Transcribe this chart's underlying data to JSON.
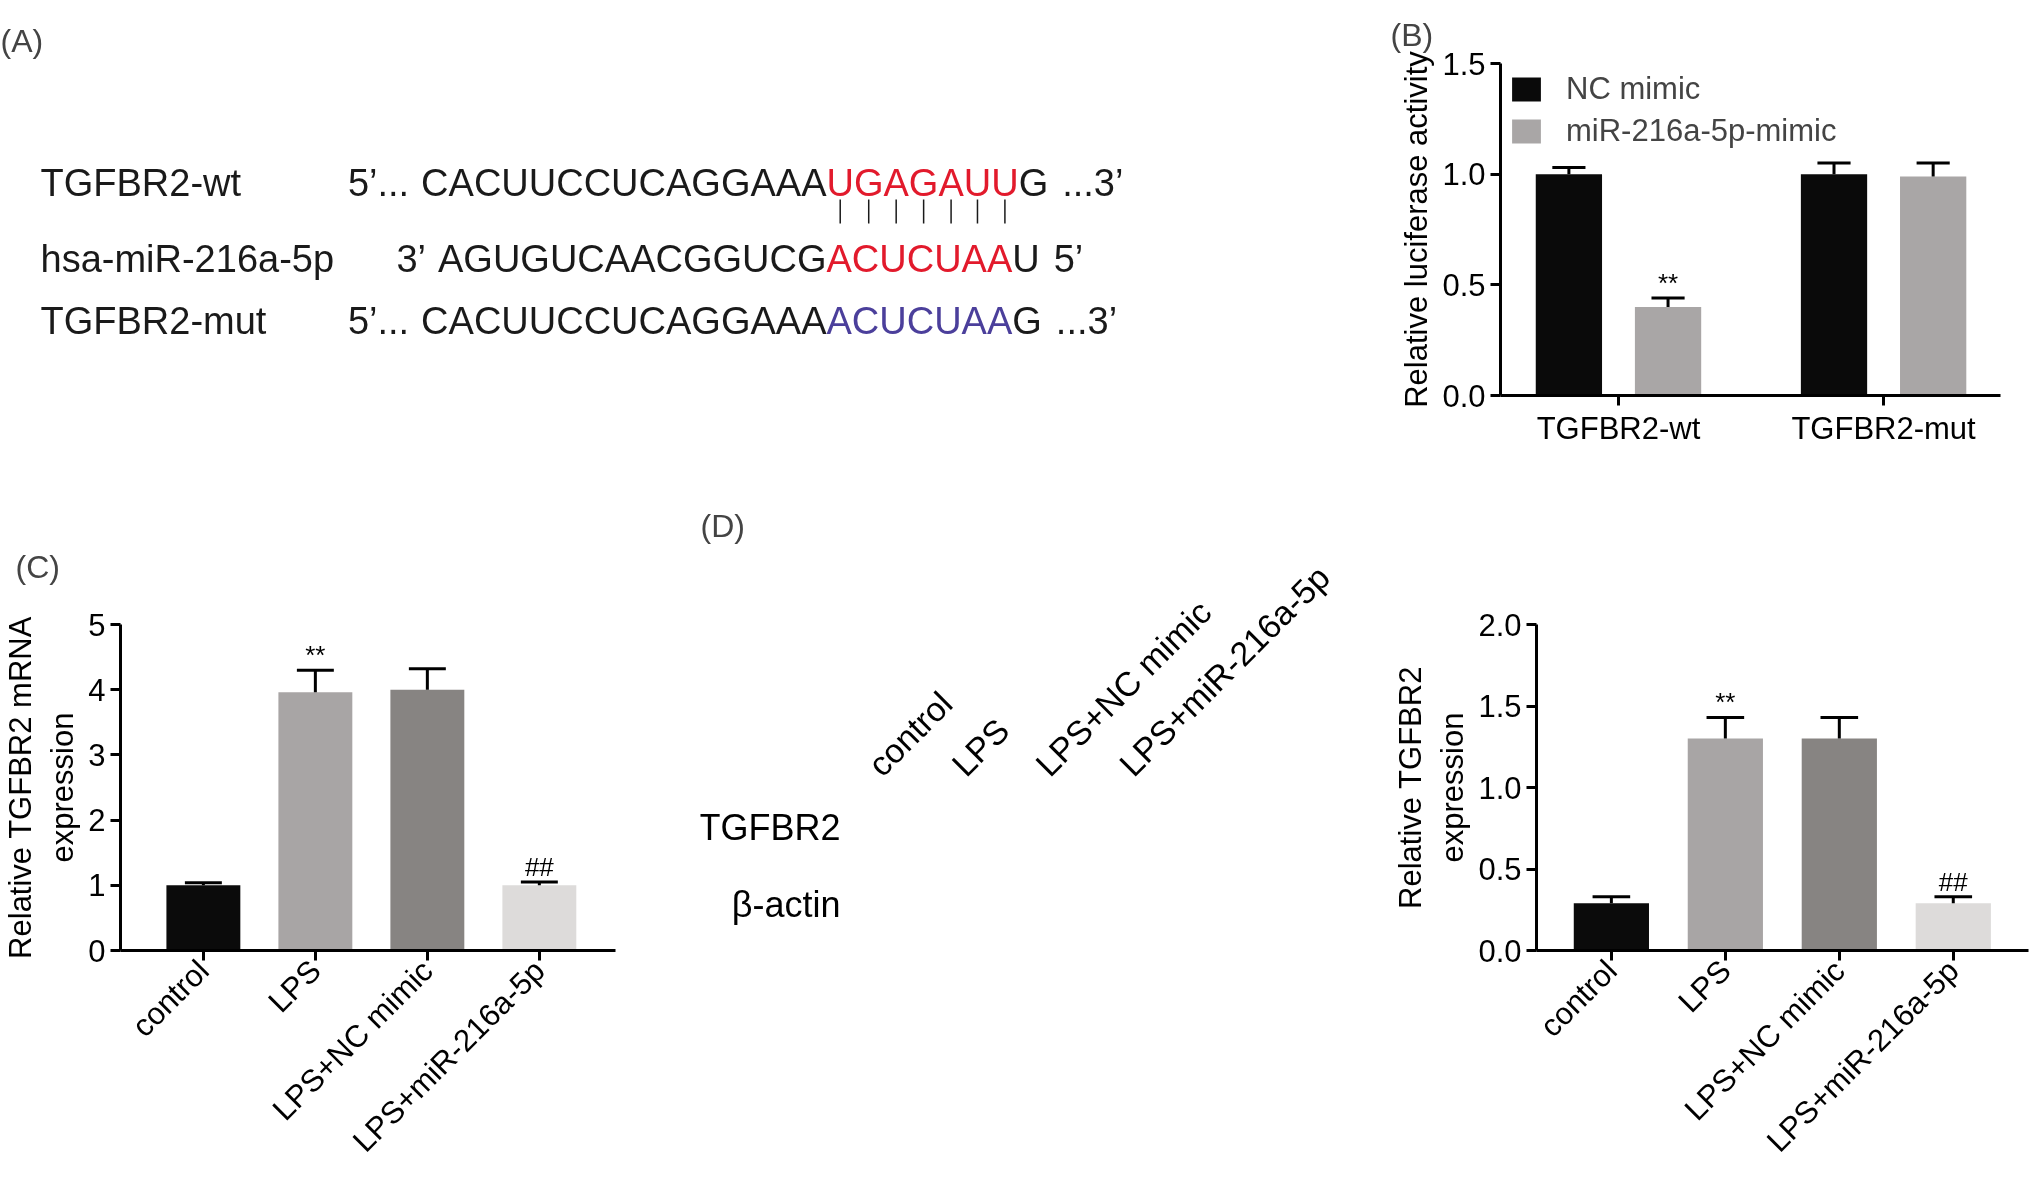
{
  "chart_data": [
    {
      "type": "other",
      "title": "(A)",
      "categories": [
        "TGFBR2-wt",
        "hsa-miR-216a-5p",
        "TGFBR2-mut"
      ],
      "annotations": [
        "5’...",
        "CACUUCCUCAGGAAA",
        "UGAGAUU",
        "G",
        "...3’",
        "3’",
        "AGUGUCAACGGUCG",
        "ACUCUAA",
        "U",
        "5’",
        "5’...",
        "CACUUCCUCAGGAAA",
        "ACUCUAA",
        "G",
        "...3’"
      ],
      "colors": [
        "#1a1a1a",
        "#1a1a1a",
        "#e21a2c",
        "#1a1a1a",
        "#1a1a1a",
        "#1a1a1a",
        "#1a1a1a",
        "#e21a2c",
        "#1a1a1a",
        "#1a1a1a",
        "#1a1a1a",
        "#1a1a1a",
        "#4b3f9b",
        "#1a1a1a",
        "#1a1a1a"
      ]
    },
    {
      "type": "bar",
      "title": "(B)",
      "categories": [
        "TGFBR2-wt",
        "TGFBR2-mut"
      ],
      "ylabel": "Relative luciferase activity",
      "ylim": [
        0,
        1.5
      ],
      "yticks": [
        {
          "value": 0,
          "label": "0.0"
        },
        {
          "value": 0.5,
          "label": "0.5"
        },
        {
          "value": 1,
          "label": "1.0"
        },
        {
          "value": 1.5,
          "label": "1.5"
        }
      ],
      "legend": "top left",
      "series": [
        {
          "name": "NC mimic",
          "color": "#0a0a0a",
          "values": [
            1.0,
            1.0
          ],
          "errors": [
            [
              1.0,
              1.03
            ],
            [
              1.0,
              1.05
            ]
          ]
        },
        {
          "name": "miR-216a-5p-mimic",
          "color": "#a9a6a6",
          "values": [
            0.4,
            0.99
          ],
          "errors": [
            [
              0.4,
              0.44
            ],
            [
              0.99,
              1.05
            ]
          ]
        }
      ],
      "annotations": [
        "**"
      ]
    },
    {
      "type": "bar",
      "title": "(C)",
      "categories": [
        "control",
        "LPS",
        "LPS+NC mimic",
        "LPS+miR-216a-5p"
      ],
      "ylabel": "Relative TGFBR2 mRNA\nexpression",
      "ylim": [
        0,
        5
      ],
      "yticks": [
        0,
        1,
        2,
        3,
        4,
        5
      ],
      "values": [
        1.0,
        3.96,
        4.0,
        1.0
      ],
      "colors": [
        "#0b0b0b",
        "#a8a5a5",
        "#878482",
        "#dddbda"
      ],
      "errors": [
        [
          1.0,
          1.04
        ],
        [
          3.96,
          4.3
        ],
        [
          4.0,
          4.32
        ],
        [
          1.0,
          1.05
        ]
      ],
      "annotations": [
        {
          "text": "**",
          "x": "LPS",
          "y": 4.3
        },
        {
          "text": "##",
          "x": "LPS+miR-216a-5p",
          "y": 1.05
        }
      ]
    },
    {
      "type": "other",
      "title": "(D)",
      "categories": [
        "control",
        "LPS",
        "LPS+NC mimic",
        "LPS+miR-216a-5p"
      ],
      "y_categories": [
        "TGFBR2",
        "β-actin"
      ]
    },
    {
      "type": "bar",
      "categories": [
        "control",
        "LPS",
        "LPS+NC mimic",
        "LPS+miR-216a-5p"
      ],
      "ylabel": "Relative TGFBR2\nexpression",
      "ylim": [
        0,
        2
      ],
      "yticks": [
        {
          "value": 0,
          "label": "0.0"
        },
        {
          "value": 0.5,
          "label": "0.5"
        },
        {
          "value": 1,
          "label": "1.0"
        },
        {
          "value": 1.5,
          "label": "1.5"
        },
        {
          "value": 2,
          "label": "2.0"
        }
      ],
      "values": [
        0.29,
        1.3,
        1.3,
        0.29
      ],
      "colors": [
        "#0b0b0b",
        "#a8a5a5",
        "#878482",
        "#dddbda"
      ],
      "errors": [
        [
          0.29,
          0.33
        ],
        [
          1.3,
          1.43
        ],
        [
          1.3,
          1.43
        ],
        [
          0.29,
          0.33
        ]
      ],
      "annotations": [
        {
          "text": "**",
          "x": "LPS",
          "y": 1.43
        },
        {
          "text": "##",
          "x": "LPS+miR-216a-5p",
          "y": 0.33
        }
      ]
    }
  ]
}
